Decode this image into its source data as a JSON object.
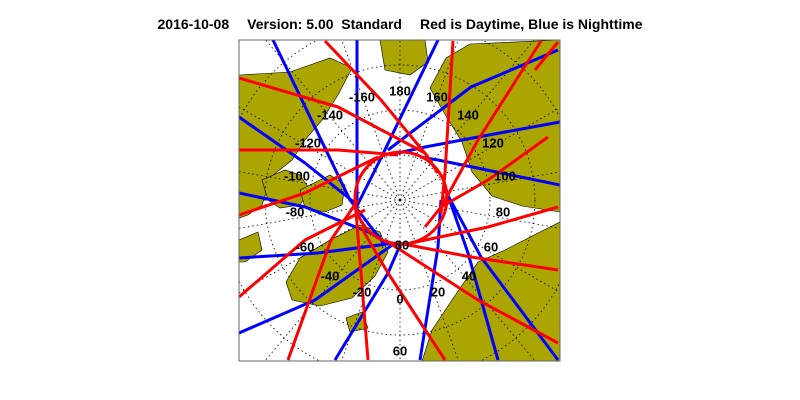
{
  "title": {
    "date": "2016-10-08",
    "version": "Version: 5.00  Standard",
    "legend": "Red is Daytime, Blue is Nighttime"
  },
  "map": {
    "projection": "north polar stereographic",
    "colors": {
      "land": "#aaa500",
      "day_track": "#ff0000",
      "night_track": "#0000ff",
      "grid": "#000000"
    },
    "longitude_labels": [
      "180",
      "160",
      "140",
      "120",
      "100",
      "80",
      "60",
      "40",
      "20",
      "0",
      "-20",
      "-40",
      "-60",
      "-80",
      "-100",
      "-120",
      "-140",
      "-160"
    ],
    "latitude_labels": [
      "80",
      "60"
    ]
  }
}
